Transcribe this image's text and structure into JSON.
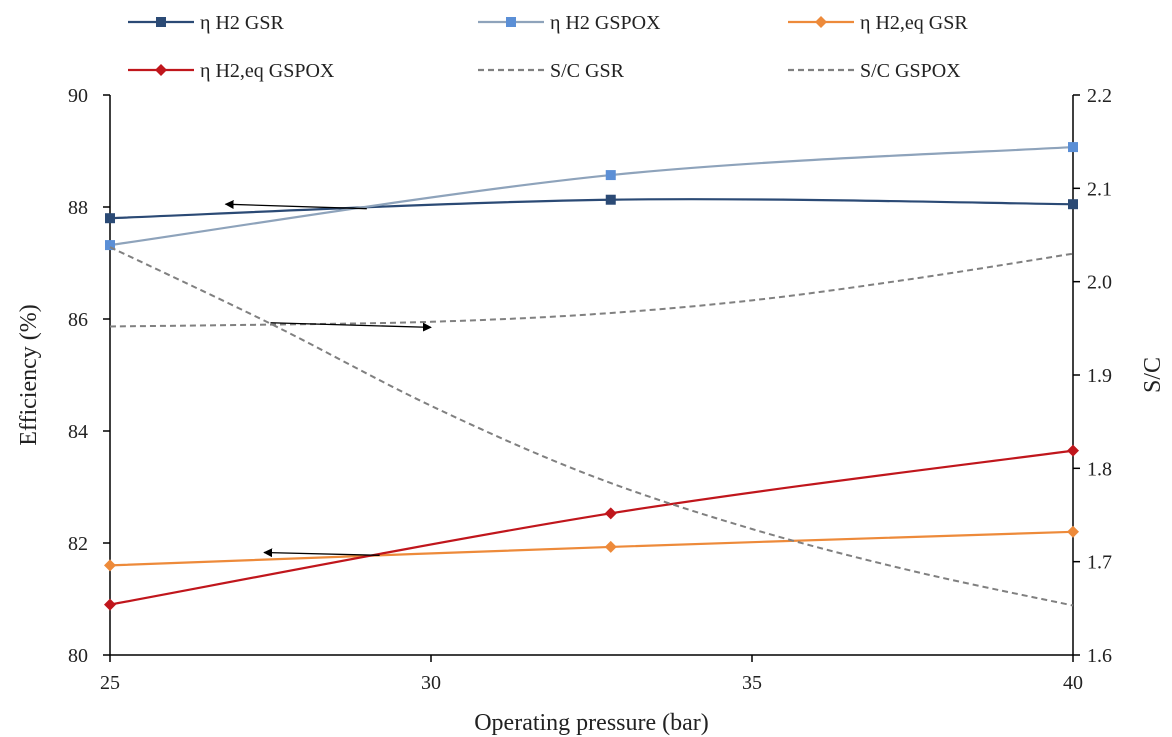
{
  "chart_data": {
    "type": "line",
    "xlabel": "Operating pressure (bar)",
    "ylabel": "Efficiency (%)",
    "y2label": "S/C",
    "xlim": [
      25,
      40
    ],
    "ylim": [
      80,
      90
    ],
    "y2lim": [
      1.6,
      2.2
    ],
    "xticks": [
      "25",
      "30",
      "35",
      "40"
    ],
    "yticks": [
      "80",
      "82",
      "84",
      "86",
      "88",
      "90"
    ],
    "y2ticks": [
      "1.6",
      "1.7",
      "1.8",
      "1.9",
      "2.0",
      "2.1",
      "2.2"
    ],
    "grid": false,
    "legend_position": "top",
    "series": [
      {
        "name": "η H2 GSR",
        "axis": "left",
        "color": "#2b4a75",
        "marker": "square",
        "dash": false,
        "x": [
          25,
          32.8,
          40
        ],
        "y": [
          87.8,
          88.13,
          88.05
        ]
      },
      {
        "name": "η H2 GSPOX",
        "axis": "left",
        "color": "#8ea3bb",
        "marker_color": "#5b8fd6",
        "marker": "square",
        "dash": false,
        "x": [
          25,
          32.8,
          40
        ],
        "y": [
          87.32,
          88.57,
          89.07
        ]
      },
      {
        "name": "η H2,eq GSR",
        "axis": "left",
        "color": "#ed8a3a",
        "marker": "diamond",
        "dash": false,
        "x": [
          25,
          32.8,
          40
        ],
        "y": [
          81.6,
          81.93,
          82.2
        ]
      },
      {
        "name": "η H2,eq GSPOX",
        "axis": "left",
        "color": "#c0161c",
        "marker": "diamond",
        "dash": false,
        "x": [
          25,
          32.8,
          40
        ],
        "y": [
          80.9,
          82.53,
          83.65
        ]
      },
      {
        "name": "S/C GSR",
        "axis": "right",
        "color": "#808080",
        "marker": "none",
        "dash": true,
        "x": [
          25,
          27.5,
          30,
          32.5,
          35,
          37.5,
          40
        ],
        "y": [
          1.952,
          1.954,
          1.957,
          1.965,
          1.98,
          2.003,
          2.03
        ]
      },
      {
        "name": "S/C GSPOX",
        "axis": "right",
        "color": "#808080",
        "marker": "none",
        "dash": true,
        "x": [
          25,
          27.5,
          30,
          32.5,
          35,
          37.5,
          40
        ],
        "y": [
          2.037,
          1.955,
          1.867,
          1.792,
          1.735,
          1.69,
          1.653
        ]
      }
    ],
    "annotations": [
      {
        "type": "arrow",
        "axis": "left",
        "from": [
          29,
          87.97
        ],
        "to": [
          26.8,
          88.05
        ]
      },
      {
        "type": "arrow",
        "axis": "right",
        "from": [
          27.5,
          1.956
        ],
        "to": [
          30,
          1.951
        ]
      },
      {
        "type": "arrow",
        "axis": "left",
        "from": [
          29.2,
          81.78
        ],
        "to": [
          27.4,
          81.83
        ]
      }
    ]
  }
}
